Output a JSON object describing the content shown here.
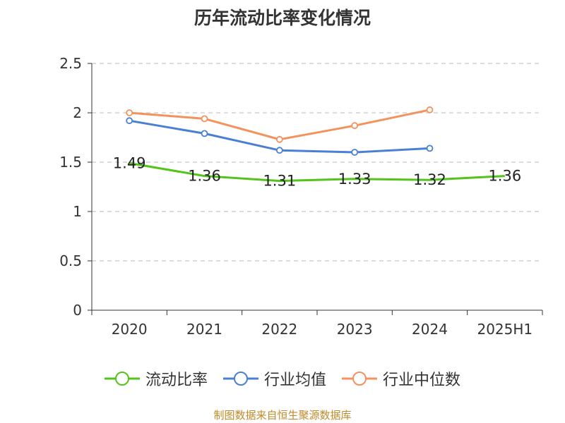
{
  "chart_data": {
    "type": "line",
    "title": "历年流动比率变化情况",
    "categories": [
      "2020",
      "2021",
      "2022",
      "2023",
      "2024",
      "2025H1"
    ],
    "ylim": [
      0,
      2.5
    ],
    "yticks": [
      "0",
      "0.5",
      "1",
      "1.5",
      "2",
      "2.5"
    ],
    "grid": true,
    "legend_position": "bottom",
    "series": [
      {
        "name": "流动比率",
        "color": "#52c41a",
        "values": [
          1.49,
          1.36,
          1.31,
          1.33,
          1.32,
          1.36
        ],
        "labels": [
          "1.49",
          "1.36",
          "1.31",
          "1.33",
          "1.32",
          "1.36"
        ]
      },
      {
        "name": "行业均值",
        "color": "#4a7fd6",
        "values": [
          1.92,
          1.79,
          1.62,
          1.6,
          1.64,
          null
        ]
      },
      {
        "name": "行业中位数",
        "color": "#f5915a",
        "values": [
          2.0,
          1.94,
          1.73,
          1.87,
          2.03,
          null
        ]
      }
    ]
  },
  "footer": {
    "source": "制图数据来自恒生聚源数据库"
  }
}
